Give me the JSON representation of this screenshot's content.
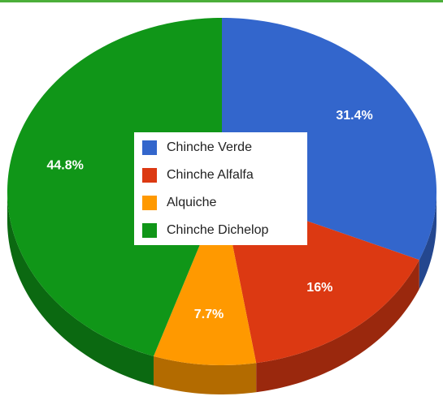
{
  "chart_data": {
    "type": "pie",
    "categories": [
      "Chinche Verde",
      "Chinche Alfalfa",
      "Alquiche",
      "Chinche Dichelop"
    ],
    "values": [
      31.4,
      16,
      7.7,
      44.8
    ],
    "value_labels": [
      "31.4%",
      "16%",
      "7.7%",
      "44.8%"
    ],
    "colors": [
      "#3366cc",
      "#dc3912",
      "#ff9900",
      "#109618"
    ],
    "legend": "center"
  }
}
